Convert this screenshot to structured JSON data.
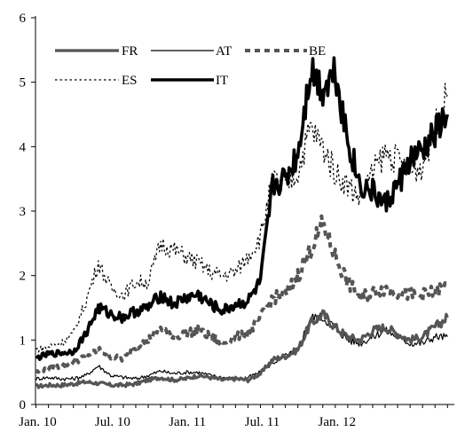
{
  "chart_data": {
    "type": "line",
    "title": "",
    "xlabel": "",
    "ylabel": "",
    "ylim": [
      0,
      6
    ],
    "yticks": [
      0,
      1,
      2,
      3,
      4,
      5,
      6
    ],
    "xlim": [
      "2010-01",
      "2012-10"
    ],
    "xticks": [
      "Jan. 10",
      "Jul. 10",
      "Jan. 11",
      "Jul. 11",
      "Jan. 12"
    ],
    "x": [
      "2010-01",
      "2010-02",
      "2010-03",
      "2010-04",
      "2010-05",
      "2010-06",
      "2010-07",
      "2010-08",
      "2010-09",
      "2010-10",
      "2010-11",
      "2010-12",
      "2011-01",
      "2011-02",
      "2011-03",
      "2011-04",
      "2011-05",
      "2011-06",
      "2011-07",
      "2011-08",
      "2011-09",
      "2011-10",
      "2011-11",
      "2011-12",
      "2012-01",
      "2012-02",
      "2012-03",
      "2012-04",
      "2012-05",
      "2012-06",
      "2012-07",
      "2012-08",
      "2012-09",
      "2012-10"
    ],
    "legend_position": "top-left",
    "grid": false,
    "series": [
      {
        "name": "FR",
        "style": "thick-solid",
        "color": "#555555",
        "values": [
          0.28,
          0.3,
          0.3,
          0.32,
          0.35,
          0.33,
          0.3,
          0.3,
          0.32,
          0.38,
          0.42,
          0.38,
          0.4,
          0.45,
          0.42,
          0.38,
          0.4,
          0.38,
          0.48,
          0.7,
          0.75,
          0.85,
          1.25,
          1.4,
          1.2,
          1.05,
          1.0,
          1.15,
          1.2,
          1.1,
          1.0,
          1.05,
          1.2,
          1.35
        ]
      },
      {
        "name": "AT",
        "style": "thin-solid",
        "color": "#000000",
        "values": [
          0.4,
          0.42,
          0.4,
          0.4,
          0.45,
          0.6,
          0.45,
          0.42,
          0.4,
          0.45,
          0.52,
          0.48,
          0.5,
          0.5,
          0.45,
          0.42,
          0.4,
          0.42,
          0.5,
          0.65,
          0.75,
          0.85,
          1.35,
          1.35,
          1.2,
          1.0,
          0.95,
          1.05,
          1.15,
          1.05,
          0.95,
          0.95,
          1.05,
          1.05
        ]
      },
      {
        "name": "BE",
        "style": "dashed",
        "color": "#555555",
        "values": [
          0.5,
          0.55,
          0.6,
          0.65,
          0.75,
          0.85,
          0.75,
          0.7,
          0.9,
          1.0,
          1.2,
          1.05,
          1.1,
          1.15,
          1.05,
          0.95,
          1.05,
          1.1,
          1.35,
          1.65,
          1.7,
          2.0,
          2.4,
          2.8,
          2.3,
          1.9,
          1.65,
          1.75,
          1.8,
          1.75,
          1.7,
          1.7,
          1.75,
          1.85
        ]
      },
      {
        "name": "ES",
        "style": "dotted",
        "color": "#000000",
        "values": [
          0.85,
          0.9,
          0.95,
          1.1,
          1.6,
          2.2,
          1.8,
          1.7,
          1.9,
          1.9,
          2.5,
          2.4,
          2.3,
          2.2,
          2.05,
          2.0,
          2.05,
          2.3,
          2.6,
          3.5,
          3.4,
          3.6,
          4.3,
          4.0,
          3.6,
          3.4,
          3.2,
          3.6,
          3.9,
          3.8,
          3.6,
          3.7,
          4.3,
          4.8
        ]
      },
      {
        "name": "IT",
        "style": "extra-thick-solid",
        "color": "#000000",
        "values": [
          0.72,
          0.78,
          0.8,
          0.82,
          1.1,
          1.5,
          1.4,
          1.35,
          1.45,
          1.5,
          1.7,
          1.55,
          1.65,
          1.7,
          1.55,
          1.45,
          1.55,
          1.6,
          1.9,
          3.4,
          3.5,
          3.9,
          5.2,
          4.9,
          5.2,
          4.1,
          3.4,
          3.3,
          3.1,
          3.4,
          3.8,
          3.9,
          4.2,
          4.5
        ]
      }
    ]
  }
}
